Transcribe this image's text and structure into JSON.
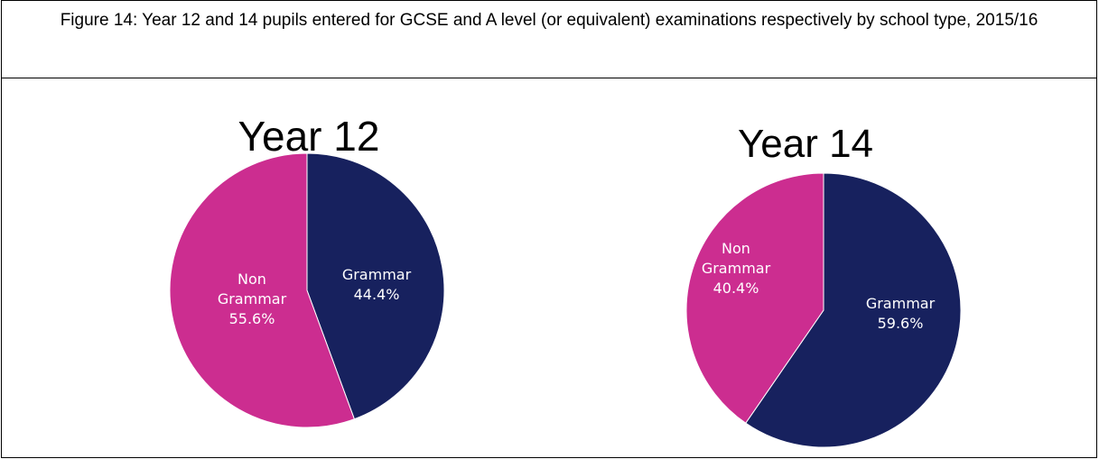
{
  "figure": {
    "title": "Figure 14: Year 12 and 14 pupils entered for GCSE and A level (or equivalent) examinations respectively by school type, 2015/16"
  },
  "colors": {
    "grammar": "#17215e",
    "non_grammar": "#cc2d90"
  },
  "chart_data": [
    {
      "type": "pie",
      "title": "Year 12",
      "slices": [
        {
          "name": "Grammar",
          "label_lines": [
            "Grammar"
          ],
          "value": 44.4,
          "value_label": "44.4%",
          "color": "#17215e"
        },
        {
          "name": "Non Grammar",
          "label_lines": [
            "Non",
            "Grammar"
          ],
          "value": 55.6,
          "value_label": "55.6%",
          "color": "#cc2d90"
        }
      ]
    },
    {
      "type": "pie",
      "title": "Year 14",
      "slices": [
        {
          "name": "Grammar",
          "label_lines": [
            "Grammar"
          ],
          "value": 59.6,
          "value_label": "59.6%",
          "color": "#17215e"
        },
        {
          "name": "Non Grammar",
          "label_lines": [
            "Non",
            "Grammar"
          ],
          "value": 40.4,
          "value_label": "40.4%",
          "color": "#cc2d90"
        }
      ]
    }
  ]
}
